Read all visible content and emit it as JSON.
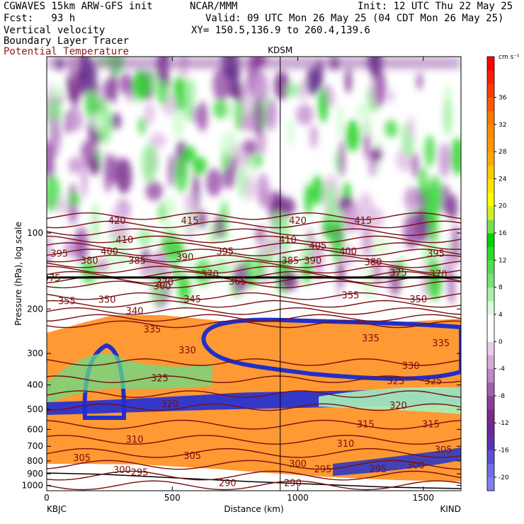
{
  "header": {
    "line1_left": "CGWAVES 15km ARW-GFS init",
    "line1_mid": "NCAR/MMM",
    "line1_right": "Init: 12 UTC Thu 22 May 25",
    "fcst": "Fcst:   93 h",
    "valid": "Valid: 09 UTC Mon 26 May 25 (04 CDT Mon 26 May 25)",
    "field1": "Vertical velocity",
    "field2": "Boundary Layer Tracer",
    "field3": "Potential Temperature",
    "xy": "XY= 150.5,136.9 to 260.4,139.6",
    "station_label": "KDSM",
    "left_station": "KBJC",
    "right_station": "KIND",
    "colors": {
      "theta": "#7a0f0f",
      "field3_text": "#8b1a1a"
    }
  },
  "chart_data": {
    "type": "heatmap",
    "xlabel": "Distance (km)",
    "ylabel": "Pressure (hPa), log scale",
    "xlim": [
      0,
      1650
    ],
    "x_ticks": [
      0,
      500,
      1000,
      1500
    ],
    "x_tick_labels": [
      "0",
      "500",
      "1000",
      "1500"
    ],
    "ylim": [
      1050,
      20
    ],
    "y_ticks": [
      100,
      200,
      300,
      400,
      500,
      600,
      700,
      800,
      900,
      1000
    ],
    "y_tick_labels": [
      "100",
      "200",
      "300",
      "400",
      "500",
      "600",
      "700",
      "800",
      "900",
      "1000"
    ],
    "kdsm_distance_km": 930,
    "colorbar": {
      "units": "cm s⁻¹",
      "min": -22,
      "max": 42,
      "step": 2,
      "tick_labels": [
        "-20",
        "-16",
        "-12",
        "-8",
        "-4",
        "0",
        "4",
        "8",
        "12",
        "16",
        "20",
        "24",
        "28",
        "32",
        "36"
      ],
      "colors": [
        "#8080f0",
        "#6e6ee6",
        "#5a50d8",
        "#5a32b4",
        "#6a2a98",
        "#7a2a88",
        "#8a3c98",
        "#a060b0",
        "#bc88c8",
        "#d4aad8",
        "#e8cce8",
        "#ffffff",
        "#ffffff",
        "#d8fcd8",
        "#a8f0a8",
        "#78e078",
        "#50e050",
        "#28dc28",
        "#00d000",
        "#78e050",
        "#d0f020",
        "#ffff00",
        "#ffe600",
        "#ffc800",
        "#ffa800",
        "#ff9600",
        "#ff8c00",
        "#ff7800",
        "#ff5a00",
        "#ff3c00",
        "#ff1e00",
        "#ff0000"
      ]
    },
    "theta_contour_labels": [
      {
        "x": 280,
        "p": 89,
        "text": "420"
      },
      {
        "x": 570,
        "p": 89,
        "text": "415"
      },
      {
        "x": 310,
        "p": 106,
        "text": "410"
      },
      {
        "x": 250,
        "p": 118,
        "text": "400"
      },
      {
        "x": 50,
        "p": 120,
        "text": "395"
      },
      {
        "x": 170,
        "p": 128,
        "text": "380"
      },
      {
        "x": 360,
        "p": 128,
        "text": "385"
      },
      {
        "x": 550,
        "p": 124,
        "text": "390"
      },
      {
        "x": 710,
        "p": 118,
        "text": "395"
      },
      {
        "x": 650,
        "p": 145,
        "text": "370"
      },
      {
        "x": 470,
        "p": 156,
        "text": "370"
      },
      {
        "x": 760,
        "p": 155,
        "text": "365"
      },
      {
        "x": 20,
        "p": 150,
        "text": "375"
      },
      {
        "x": 460,
        "p": 162,
        "text": "360"
      },
      {
        "x": 80,
        "p": 185,
        "text": "355"
      },
      {
        "x": 240,
        "p": 183,
        "text": "350"
      },
      {
        "x": 580,
        "p": 182,
        "text": "345"
      },
      {
        "x": 350,
        "p": 203,
        "text": "340"
      },
      {
        "x": 420,
        "p": 240,
        "text": "335"
      },
      {
        "x": 560,
        "p": 290,
        "text": "330"
      },
      {
        "x": 450,
        "p": 375,
        "text": "325"
      },
      {
        "x": 490,
        "p": 475,
        "text": "320"
      },
      {
        "x": 350,
        "p": 655,
        "text": "310"
      },
      {
        "x": 580,
        "p": 760,
        "text": "305"
      },
      {
        "x": 140,
        "p": 775,
        "text": "305"
      },
      {
        "x": 300,
        "p": 865,
        "text": "300"
      },
      {
        "x": 370,
        "p": 885,
        "text": "295"
      },
      {
        "x": 720,
        "p": 975,
        "text": "290"
      },
      {
        "x": 1000,
        "p": 89,
        "text": "420"
      },
      {
        "x": 1260,
        "p": 89,
        "text": "415"
      },
      {
        "x": 960,
        "p": 106,
        "text": "410"
      },
      {
        "x": 1080,
        "p": 112,
        "text": "405"
      },
      {
        "x": 1200,
        "p": 118,
        "text": "400"
      },
      {
        "x": 1550,
        "p": 120,
        "text": "395"
      },
      {
        "x": 1060,
        "p": 128,
        "text": "390"
      },
      {
        "x": 1300,
        "p": 130,
        "text": "380"
      },
      {
        "x": 970,
        "p": 128,
        "text": "385"
      },
      {
        "x": 1400,
        "p": 143,
        "text": "375"
      },
      {
        "x": 1560,
        "p": 145,
        "text": "370"
      },
      {
        "x": 1210,
        "p": 176,
        "text": "355"
      },
      {
        "x": 1480,
        "p": 182,
        "text": "350"
      },
      {
        "x": 1290,
        "p": 260,
        "text": "335"
      },
      {
        "x": 1570,
        "p": 272,
        "text": "335"
      },
      {
        "x": 1450,
        "p": 335,
        "text": "330"
      },
      {
        "x": 1390,
        "p": 385,
        "text": "325"
      },
      {
        "x": 1540,
        "p": 385,
        "text": "325"
      },
      {
        "x": 1400,
        "p": 480,
        "text": "320"
      },
      {
        "x": 1270,
        "p": 570,
        "text": "315"
      },
      {
        "x": 1530,
        "p": 570,
        "text": "315"
      },
      {
        "x": 1190,
        "p": 680,
        "text": "310"
      },
      {
        "x": 1580,
        "p": 720,
        "text": "305"
      },
      {
        "x": 1000,
        "p": 820,
        "text": "300"
      },
      {
        "x": 1100,
        "p": 860,
        "text": "295"
      },
      {
        "x": 1320,
        "p": 860,
        "text": "295"
      },
      {
        "x": 1470,
        "p": 830,
        "text": "300"
      },
      {
        "x": 980,
        "p": 975,
        "text": "290"
      }
    ],
    "theta_levels": [
      290,
      295,
      300,
      305,
      310,
      315,
      320,
      325,
      330,
      335,
      340,
      345,
      350,
      355,
      360,
      365,
      370,
      375,
      380,
      385,
      390,
      395,
      400,
      405,
      410,
      415,
      420
    ]
  }
}
